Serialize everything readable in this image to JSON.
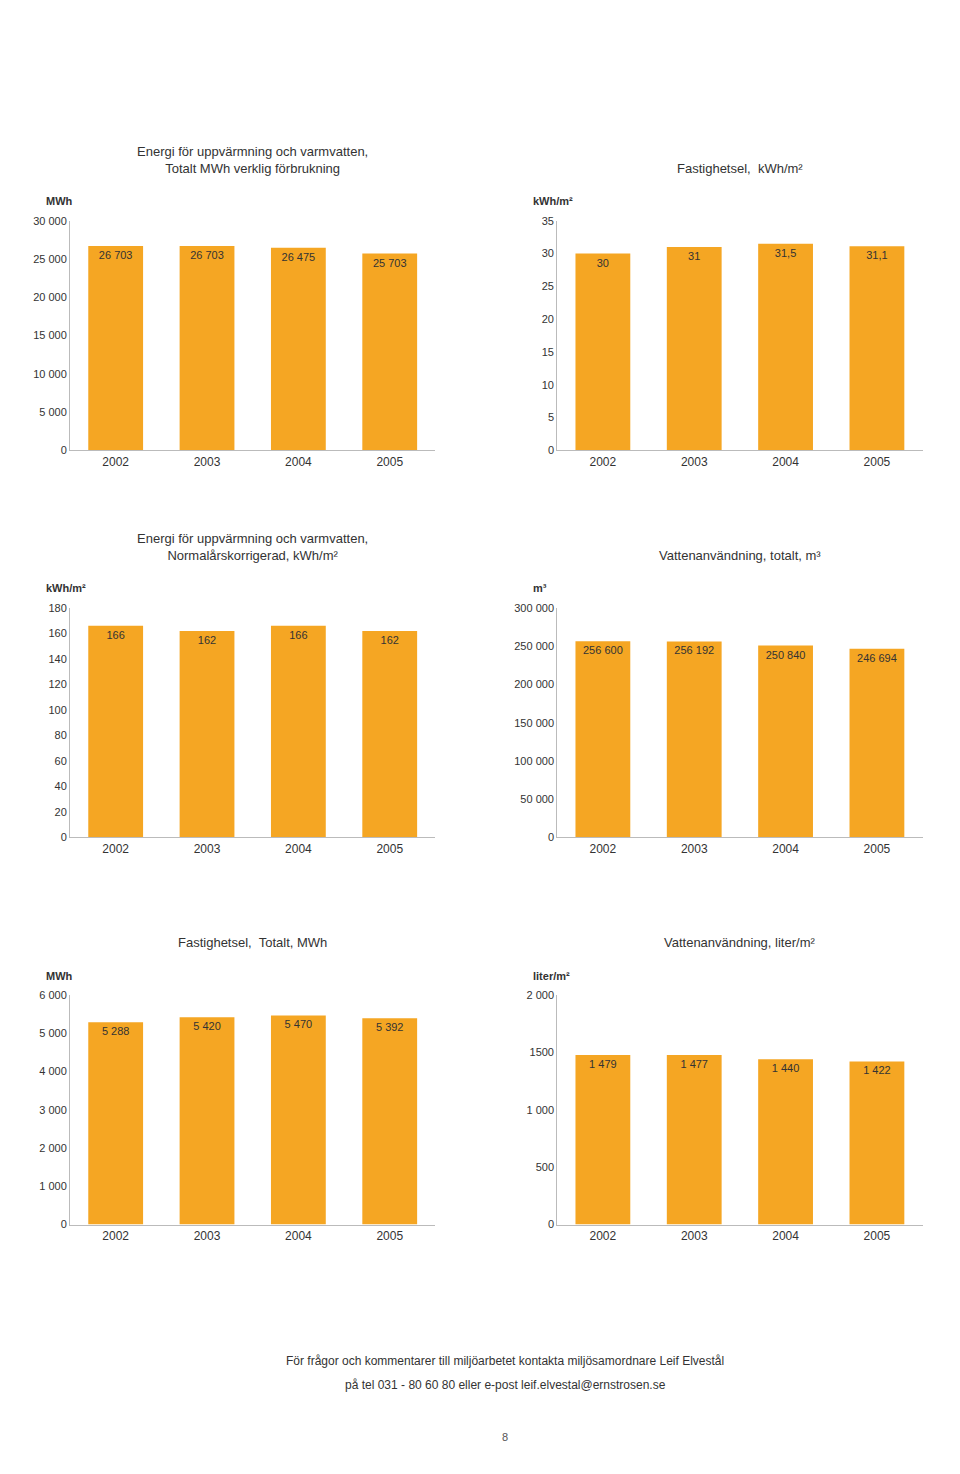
{
  "chart_data": [
    {
      "type": "bar",
      "title": "Energi för uppvärmning och varmvatten,",
      "subtitle": "Totalt MWh verklig förbrukning",
      "ylabel": "MWh",
      "categories": [
        "2002",
        "2003",
        "2004",
        "2005"
      ],
      "values": [
        26703,
        26703,
        26475,
        25703
      ],
      "value_labels": [
        "26 703",
        "26 703",
        "26 475",
        "25 703"
      ],
      "data_labels": true,
      "color": "#F5A623",
      "ylim": [
        0,
        30000
      ],
      "yticks": [
        0,
        {
          "value": 5000,
          "label": "5 000"
        },
        {
          "value": 10000,
          "label": "10 000"
        },
        {
          "value": 15000,
          "label": "15 000"
        },
        {
          "value": 20000,
          "label": "20 000"
        },
        {
          "value": 25000,
          "label": "25 000"
        },
        {
          "value": 30000,
          "label": "30 000"
        }
      ],
      "grid": false
    },
    {
      "type": "bar",
      "title": "Fastighetsel,  kWh/m²",
      "ylabel": "kWh/m²",
      "categories": [
        "2002",
        "2003",
        "2004",
        "2005"
      ],
      "values": [
        30,
        31,
        31.5,
        31.1
      ],
      "value_labels": [
        "30",
        "31",
        "31,5",
        "31,1"
      ],
      "data_labels": true,
      "color": "#F5A623",
      "ylim": [
        0,
        35
      ],
      "yticks": [
        0,
        5,
        10,
        15,
        20,
        25,
        30,
        35
      ],
      "grid": false
    },
    {
      "type": "bar",
      "title": "Energi för uppvärmning och varmvatten,",
      "subtitle": "Normalårskorrigerad, kWh/m²",
      "ylabel": "kWh/m²",
      "categories": [
        "2002",
        "2003",
        "2004",
        "2005"
      ],
      "values": [
        166,
        162,
        166,
        162
      ],
      "data_labels": true,
      "color": "#F5A623",
      "ylim": [
        0,
        180
      ],
      "yticks": [
        0,
        20,
        40,
        60,
        80,
        100,
        120,
        140,
        160,
        180
      ],
      "grid": false
    },
    {
      "type": "bar",
      "title": "Vattenanvändning, totalt, m³",
      "ylabel": "m³",
      "categories": [
        "2002",
        "2003",
        "2004",
        "2005"
      ],
      "values": [
        256600,
        256192,
        250840,
        246694
      ],
      "value_labels": [
        "256 600",
        "256 192",
        "250 840",
        "246 694"
      ],
      "data_labels": true,
      "color": "#F5A623",
      "ylim": [
        0,
        300000
      ],
      "yticks": [
        0,
        {
          "value": 50000,
          "label": "50 000"
        },
        {
          "value": 100000,
          "label": "100 000"
        },
        {
          "value": 150000,
          "label": "150 000"
        },
        {
          "value": 200000,
          "label": "200 000"
        },
        {
          "value": 250000,
          "label": "250 000"
        },
        {
          "value": 300000,
          "label": "300 000"
        }
      ],
      "grid": false
    },
    {
      "type": "bar",
      "title": "Fastighetsel,  Totalt, MWh",
      "ylabel": "MWh",
      "categories": [
        "2002",
        "2003",
        "2004",
        "2005"
      ],
      "values": [
        5288,
        5420,
        5470,
        5392
      ],
      "value_labels": [
        "5 288",
        "5 420",
        "5 470",
        "5 392"
      ],
      "data_labels": true,
      "color": "#F5A623",
      "ylim": [
        0,
        6000
      ],
      "yticks": [
        0,
        {
          "value": 1000,
          "label": "1 000"
        },
        {
          "value": 2000,
          "label": "2 000"
        },
        {
          "value": 3000,
          "label": "3 000"
        },
        {
          "value": 4000,
          "label": "4 000"
        },
        {
          "value": 5000,
          "label": "5 000"
        },
        {
          "value": 6000,
          "label": "6 000"
        }
      ],
      "grid": false
    },
    {
      "type": "bar",
      "title": "Vattenanvändning, liter/m²",
      "ylabel": "liter/m²",
      "categories": [
        "2002",
        "2003",
        "2004",
        "2005"
      ],
      "values": [
        1479,
        1477,
        1440,
        1422
      ],
      "value_labels": [
        "1 479",
        "1 477",
        "1 440",
        "1 422"
      ],
      "data_labels": true,
      "color": "#F5A623",
      "ylim": [
        0,
        2000
      ],
      "yticks": [
        0,
        500,
        {
          "value": 1000,
          "label": "1 000"
        },
        1500,
        {
          "value": 2000,
          "label": "2 000"
        }
      ],
      "grid": false
    }
  ],
  "annotations": [
    "För frågor och kommentarer till miljöarbetet kontakta miljösamordnare Leif Elvestål",
    "på tel 031 - 80 60 80 eller e-post leif.elvestal@ernstrosen.se",
    "8"
  ]
}
